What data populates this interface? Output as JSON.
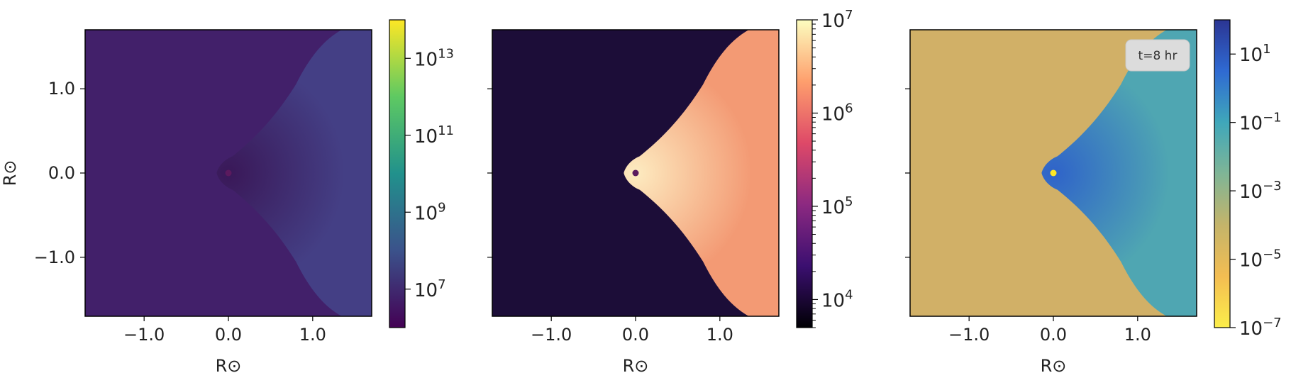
{
  "chart_data": [
    {
      "type": "heatmap",
      "title": "",
      "xlabel": "R⊙",
      "ylabel": "R⊙",
      "xlim": [
        -1.7,
        1.7
      ],
      "ylim": [
        -1.7,
        1.7
      ],
      "xticks": [
        "-1.0",
        "0.0",
        "1.0"
      ],
      "yticks": [
        "1.0",
        "0.0",
        "-1.0"
      ],
      "colormap": "viridis",
      "colors": {
        "ambient": "#42206a",
        "outflow": "#443f85",
        "core": "#3a1858"
      },
      "colorbar": {
        "scale": "log",
        "range": [
          1000000.0,
          100000000000000.0
        ],
        "ticks": [
          "10^13",
          "10^11",
          "10^9",
          "10^7"
        ],
        "stops": [
          "#440154",
          "#3b528b",
          "#21918c",
          "#5ec962",
          "#fde725"
        ]
      }
    },
    {
      "type": "heatmap",
      "title": "",
      "xlabel": "R⊙",
      "ylabel": "",
      "xlim": [
        -1.7,
        1.7
      ],
      "ylim": [
        -1.7,
        1.7
      ],
      "xticks": [
        "-1.0",
        "0.0",
        "1.0"
      ],
      "yticks": [],
      "colormap": "magma",
      "colors": {
        "ambient": "#1c0d38",
        "outflow": "#f39a74",
        "core": "#fdebc0"
      },
      "colorbar": {
        "scale": "log",
        "range": [
          5000,
          10000000
        ],
        "ticks": [
          "10^7",
          "10^6",
          "10^5",
          "10^4"
        ],
        "stops": [
          "#000004",
          "#3b0f70",
          "#8c2981",
          "#de4968",
          "#fe9f6d",
          "#fcfdbf"
        ]
      }
    },
    {
      "type": "heatmap",
      "title": "",
      "xlabel": "R⊙",
      "ylabel": "",
      "xlim": [
        -1.7,
        1.7
      ],
      "ylim": [
        -1.7,
        1.7
      ],
      "xticks": [
        "-1.0",
        "0.0",
        "1.0"
      ],
      "yticks": [],
      "colormap": "plasma-reversed",
      "annotation": "t=8 hr",
      "colors": {
        "ambient": "#d1b067",
        "outflow": "#4fa6b2",
        "core": "#2f63c9"
      },
      "colorbar": {
        "scale": "log",
        "range": [
          1e-07,
          100
        ],
        "ticks": [
          "10^1",
          "10^-1",
          "10^-3",
          "10^-5",
          "10^-7"
        ],
        "stops": [
          "#fcee4a",
          "#f3bd52",
          "#c4b46a",
          "#7fb596",
          "#3fa7ba",
          "#2f6ad2",
          "#2b3593"
        ]
      }
    }
  ]
}
